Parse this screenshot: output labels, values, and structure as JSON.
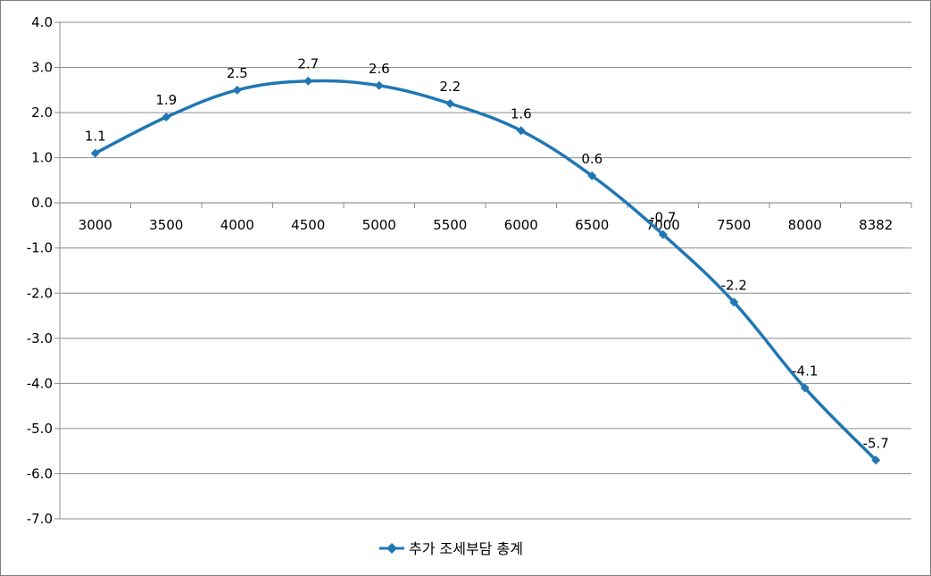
{
  "chart_data": {
    "type": "line",
    "title": "",
    "xlabel": "",
    "ylabel": "",
    "categories": [
      "3000",
      "3500",
      "4000",
      "4500",
      "5000",
      "5500",
      "6000",
      "6500",
      "7000",
      "7500",
      "8000",
      "8382"
    ],
    "series": [
      {
        "name": "추가 조세부담 총계",
        "values": [
          1.1,
          1.9,
          2.5,
          2.7,
          2.6,
          2.2,
          1.6,
          0.6,
          -0.7,
          -2.2,
          -4.1,
          -5.7
        ],
        "value_labels": [
          "1.1",
          "1.9",
          "2.5",
          "2.7",
          "2.6",
          "2.2",
          "1.6",
          "0.6",
          "-0.7",
          "-2.2",
          "-4.1",
          "-5.7"
        ],
        "color": "#1f77b4"
      }
    ],
    "ylim": [
      -7.0,
      4.0
    ],
    "yticks": [
      "4.0",
      "3.0",
      "2.0",
      "1.0",
      "0.0",
      "-1.0",
      "-2.0",
      "-3.0",
      "-4.0",
      "-5.0",
      "-6.0",
      "-7.0"
    ],
    "grid": true,
    "legend": "bottom",
    "marker": "diamond"
  }
}
